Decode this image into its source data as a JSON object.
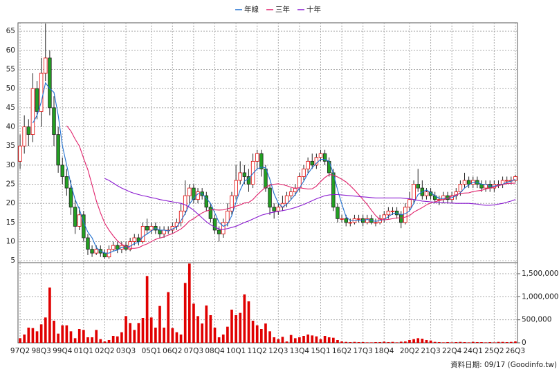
{
  "chart_data": [
    {
      "type": "candlestick",
      "categories": [
        "97Q2",
        null,
        null,
        null,
        null,
        "98Q3",
        null,
        null,
        null,
        null,
        "99Q4",
        null,
        null,
        null,
        null,
        "01Q1",
        null,
        null,
        null,
        null,
        "02Q2",
        null,
        null,
        null,
        null,
        "03Q3",
        null,
        null,
        null,
        null,
        null,
        "05Q1",
        null,
        null,
        null,
        null,
        "06Q2",
        null,
        null,
        null,
        null,
        "07Q3",
        null,
        null,
        null,
        null,
        "08Q4",
        null,
        null,
        null,
        null,
        "10Q1",
        null,
        null,
        null,
        null,
        "11Q2",
        null,
        null,
        null,
        null,
        "12Q3",
        null,
        null,
        null,
        null,
        "13Q4",
        null,
        null,
        null,
        null,
        "15Q1",
        null,
        null,
        null,
        null,
        "16Q2",
        null,
        null,
        null,
        null,
        "17Q3",
        null,
        null,
        null,
        null,
        "18Q4",
        null,
        null,
        null,
        null,
        null,
        "20Q2",
        null,
        null,
        null,
        null,
        "21Q3",
        null,
        null,
        null,
        null,
        "22Q4",
        null,
        null,
        null,
        null,
        "24Q1",
        null,
        null,
        null,
        null,
        "25Q2",
        null,
        null,
        null,
        null,
        "26Q3"
      ],
      "open": [
        31,
        35,
        40,
        38,
        50,
        44,
        54,
        58,
        45,
        38,
        30,
        27,
        24,
        19,
        14,
        17,
        11,
        8,
        7,
        8,
        7,
        6,
        8,
        9,
        8,
        9,
        8,
        10,
        11,
        10,
        14,
        13,
        14,
        13,
        12,
        13,
        13,
        14,
        15,
        18,
        22,
        24,
        21,
        23,
        22,
        19,
        16,
        13,
        12,
        15,
        18,
        22,
        26,
        28,
        27,
        25,
        31,
        33,
        29,
        24,
        19,
        18,
        19,
        20,
        22,
        23,
        24,
        27,
        29,
        31,
        30,
        32,
        33,
        31,
        28,
        19,
        16,
        16,
        15,
        15,
        16,
        16,
        15,
        16,
        15,
        15,
        16,
        17,
        18,
        18,
        17,
        15,
        19,
        21,
        25,
        24,
        22,
        23,
        22,
        21,
        21,
        22,
        21,
        22,
        23,
        25,
        26,
        25,
        26,
        25,
        24,
        25,
        24,
        25,
        25,
        26,
        26,
        26
      ],
      "high": [
        38,
        43,
        42,
        54,
        52,
        58,
        67,
        60,
        48,
        40,
        32,
        29,
        26,
        21,
        19,
        18,
        12,
        9,
        9,
        9,
        8,
        9,
        10,
        10,
        10,
        10,
        11,
        12,
        12,
        15,
        16,
        15,
        15,
        14,
        14,
        14,
        15,
        16,
        20,
        26,
        25,
        25,
        24,
        24,
        23,
        20,
        17,
        14,
        16,
        20,
        23,
        30,
        31,
        30,
        29,
        33,
        34,
        34,
        30,
        25,
        20,
        20,
        22,
        23,
        24,
        25,
        28,
        30,
        32,
        33,
        33,
        34,
        34,
        32,
        29,
        20,
        17,
        17,
        16,
        17,
        17,
        17,
        17,
        17,
        16,
        17,
        18,
        19,
        19,
        19,
        18,
        20,
        23,
        26,
        29,
        26,
        24,
        24,
        23,
        22,
        23,
        23,
        23,
        24,
        26,
        28,
        27,
        27,
        27,
        26,
        26,
        26,
        26,
        26,
        27,
        27,
        27,
        27.5
      ],
      "low": [
        29,
        33,
        35,
        36,
        42,
        40,
        52,
        43,
        35,
        28,
        25,
        22,
        17,
        12,
        13,
        10,
        6.5,
        6,
        6.5,
        6,
        5.5,
        5.5,
        7.5,
        7,
        7,
        7.5,
        7.5,
        9,
        9,
        9.5,
        12,
        12,
        12,
        11,
        11,
        12,
        12,
        13,
        14,
        17,
        20,
        20,
        20,
        21,
        18,
        15,
        12,
        10,
        11,
        14,
        17,
        21,
        25,
        25,
        23,
        24,
        29,
        27,
        23,
        17,
        16,
        17,
        18,
        19,
        21,
        22,
        23,
        26,
        28,
        29,
        29,
        31,
        30,
        27,
        18,
        15,
        15,
        14,
        14,
        14.5,
        15,
        14,
        14.5,
        14.5,
        14,
        14.5,
        15,
        16,
        17,
        16,
        13.5,
        14.5,
        18,
        20,
        23,
        21,
        21,
        21,
        20,
        19.5,
        20,
        20,
        20,
        21,
        22,
        24,
        24,
        24,
        24,
        23,
        23,
        23,
        23,
        24,
        24,
        25,
        25,
        25.5
      ],
      "close": [
        35,
        40,
        38,
        50,
        44,
        54,
        58,
        45,
        38,
        30,
        27,
        24,
        19,
        14,
        17,
        11,
        8,
        7,
        8,
        7,
        6,
        8,
        9,
        8,
        9,
        8,
        10,
        11,
        10,
        14,
        13,
        14,
        13,
        12,
        13,
        13,
        14,
        15,
        18,
        22,
        24,
        21,
        23,
        22,
        19,
        16,
        13,
        12,
        15,
        18,
        22,
        26,
        28,
        27,
        25,
        31,
        33,
        29,
        24,
        19,
        18,
        19,
        20,
        22,
        23,
        24,
        27,
        29,
        31,
        30,
        32,
        33,
        31,
        28,
        19,
        16,
        16,
        15,
        15,
        16,
        16,
        15,
        16,
        15,
        15,
        16,
        17,
        18,
        18,
        17,
        15,
        19,
        21,
        25,
        24,
        22,
        23,
        22,
        21,
        21,
        22,
        21,
        22,
        23,
        25,
        26,
        25,
        26,
        25,
        24,
        25,
        24,
        25,
        25,
        26,
        26,
        26,
        27
      ],
      "up_color": "#e00000",
      "down_color": "#22a022",
      "series": [
        {
          "name": "年線",
          "color": "#1f6fd0",
          "values": [
            null,
            null,
            null,
            41,
            43,
            46.5,
            51.5,
            50,
            49,
            43,
            35,
            30,
            25,
            21,
            18.5,
            15,
            12.5,
            11,
            8.5,
            7.5,
            7,
            7,
            7.5,
            7.8,
            8.5,
            8.5,
            8.8,
            9.5,
            9.8,
            11.3,
            12,
            12.8,
            13.5,
            13,
            13,
            12.8,
            13.3,
            13.8,
            15.5,
            17.3,
            19.8,
            21.3,
            22.5,
            22.5,
            21.3,
            20,
            17.5,
            15,
            14,
            14.5,
            16.8,
            20.3,
            23.5,
            25.8,
            26.5,
            27.8,
            29,
            29.5,
            29.3,
            26.3,
            22.5,
            20,
            19,
            19.8,
            21,
            22.3,
            24,
            25.8,
            27.8,
            29.3,
            30.5,
            31.5,
            31.5,
            31,
            27.8,
            23.5,
            19.8,
            16.5,
            15.5,
            15.5,
            15.5,
            15.5,
            15.8,
            15.5,
            15.3,
            15.5,
            15.8,
            16.5,
            17.3,
            17.5,
            17,
            17.3,
            18,
            20,
            22.3,
            23,
            23.5,
            22.8,
            22,
            21.3,
            21.3,
            21.3,
            21.5,
            22,
            22.8,
            24,
            24.8,
            25.5,
            25.5,
            25,
            25,
            24.5,
            24.5,
            24.8,
            25,
            25.5,
            25.8,
            26.3
          ]
        },
        {
          "name": "三年",
          "color": "#e0206a",
          "values": [
            null,
            null,
            null,
            null,
            null,
            null,
            null,
            null,
            null,
            null,
            null,
            40.3,
            38.9,
            36.8,
            35,
            31.8,
            28.8,
            24.8,
            20.7,
            17.5,
            14.8,
            13,
            11.5,
            10.2,
            9.3,
            8.8,
            8.25,
            8.25,
            8.4,
            9,
            9.4,
            10,
            10.6,
            10.9,
            11.25,
            11.7,
            12.1,
            12.7,
            13.3,
            14.25,
            15.4,
            16,
            16.8,
            17.5,
            18,
            18.3,
            18.3,
            18.25,
            18.3,
            18.6,
            18.9,
            19.25,
            19.6,
            20.1,
            20.25,
            21,
            22.2,
            23.25,
            24.2,
            24.75,
            25,
            25.1,
            24.9,
            24.6,
            24.2,
            23.9,
            24.1,
            23.9,
            23.75,
            23.8,
            24.5,
            25.7,
            26.75,
            27.5,
            27.4,
            26.9,
            26.3,
            25.6,
            24.6,
            23.5,
            22.25,
            21,
            19.7,
            18.2,
            16.8,
            15.8,
            15.7,
            15.8,
            16,
            16.2,
            16.2,
            16.4,
            16.8,
            17.7,
            18.3,
            18.9,
            19.6,
            20.1,
            20.4,
            20.7,
            21,
            21.3,
            21.9,
            22.25,
            22.6,
            22.7,
            22.75,
            23.1,
            23.25,
            23.4,
            23.75,
            24,
            24.25,
            24.6,
            24.9,
            25.2,
            25.25,
            25.3
          ]
        },
        {
          "name": "十年",
          "color": "#8a1ad0",
          "values": [
            null,
            null,
            null,
            null,
            null,
            null,
            null,
            null,
            null,
            null,
            null,
            null,
            null,
            null,
            null,
            null,
            null,
            null,
            null,
            null,
            26.5,
            26,
            25.3,
            24.6,
            24,
            23.5,
            23,
            22.6,
            22.3,
            22,
            21.8,
            21.5,
            21.3,
            21,
            20.8,
            20.6,
            20.4,
            20.2,
            20,
            19.6,
            19,
            18.2,
            17.2,
            16.2,
            15.2,
            14.4,
            13.8,
            13.3,
            13.2,
            13.4,
            13.7,
            14,
            14.5,
            15,
            15.4,
            15.9,
            16.4,
            16.9,
            17.2,
            17.5,
            17.7,
            17.9,
            18.1,
            18.3,
            18.6,
            18.9,
            19.3,
            19.7,
            20.2,
            20.7,
            21.2,
            21.6,
            22,
            22.2,
            22.3,
            22.3,
            22.2,
            22.1,
            22,
            21.9,
            21.8,
            21.7,
            21.6,
            21.5,
            21.4,
            21.4,
            21.4,
            21.4,
            21.4,
            21.4,
            21.4,
            21.3,
            21.2,
            21,
            20.8,
            20.6,
            20.5,
            20.4,
            20.3,
            20.2,
            20.2,
            20.1,
            20.1,
            20,
            20,
            20,
            20,
            19.9,
            19.8,
            19.6,
            19.5,
            19.5,
            19.6,
            19.8,
            20,
            20.3,
            20.6,
            21
          ]
        }
      ],
      "ylim": [
        4.5,
        67.2
      ],
      "yticks": [
        5,
        10,
        15,
        20,
        25,
        30,
        35,
        40,
        45,
        50,
        55,
        60,
        65
      ],
      "grid": true,
      "legend": "top"
    },
    {
      "type": "bar",
      "values": [
        100000,
        180000,
        330000,
        320000,
        250000,
        400000,
        550000,
        1200000,
        480000,
        200000,
        380000,
        380000,
        250000,
        100000,
        300000,
        280000,
        120000,
        120000,
        280000,
        80000,
        30000,
        60000,
        150000,
        140000,
        230000,
        580000,
        430000,
        280000,
        430000,
        540000,
        1450000,
        550000,
        330000,
        800000,
        330000,
        1100000,
        320000,
        230000,
        180000,
        1300000,
        1720000,
        850000,
        580000,
        420000,
        810000,
        600000,
        330000,
        120000,
        180000,
        350000,
        720000,
        600000,
        650000,
        1050000,
        900000,
        480000,
        380000,
        300000,
        420000,
        250000,
        120000,
        80000,
        130000,
        30000,
        170000,
        100000,
        120000,
        150000,
        180000,
        160000,
        140000,
        80000,
        150000,
        120000,
        110000,
        60000,
        30000,
        20000,
        15000,
        20000,
        15000,
        15000,
        10000,
        10000,
        15000,
        15000,
        25000,
        15000,
        20000,
        10000,
        25000,
        30000,
        60000,
        80000,
        100000,
        90000,
        60000,
        50000,
        20000,
        15000,
        10000,
        15000,
        10000,
        15000,
        20000,
        15000,
        10000,
        20000,
        15000,
        15000,
        10000,
        15000,
        10000,
        20000,
        20000,
        15000,
        20000,
        30000
      ],
      "color": "#e00000",
      "ylim": [
        0,
        1740000
      ],
      "yticks": [
        0,
        {
          "value": 500000,
          "label": "500,000"
        },
        {
          "value": 1000000,
          "label": "1,000,000"
        },
        {
          "value": 1500000,
          "label": "1,500,000"
        }
      ],
      "grid": true,
      "annotation": "資料日期: 09/17 (Goodinfo.tw)"
    }
  ]
}
